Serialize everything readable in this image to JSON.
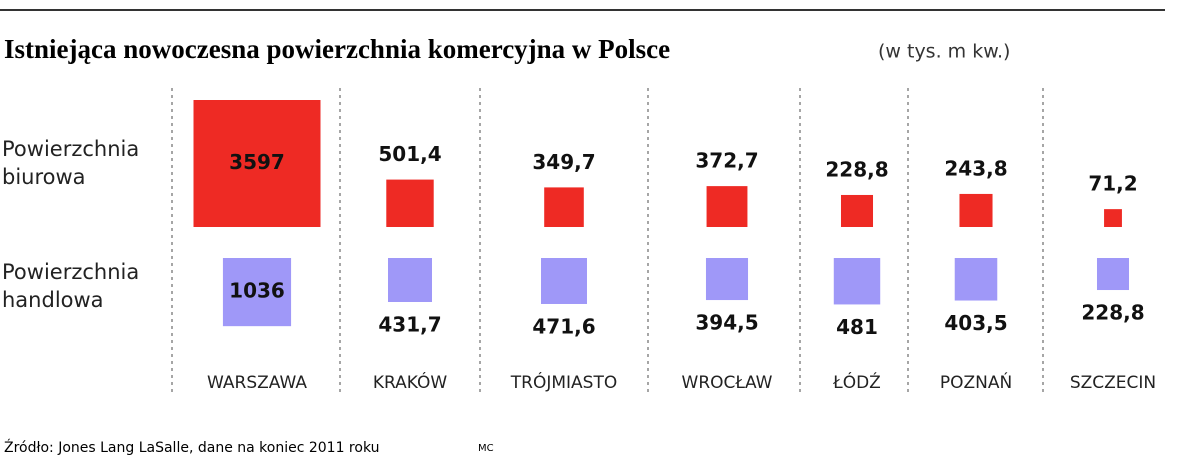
{
  "chart_data": {
    "type": "proportional-square",
    "title": "Istniejąca nowoczesna powierzchnia komercyjna w Polsce",
    "subtitle": "(w tys. m kw.)",
    "source": "Źródło: Jones Lang LaSalle, dane na koniec 2011 roku",
    "credit": "MC",
    "categories": [
      "WARSZAWA",
      "KRAKÓW",
      "TRÓJMIASTO",
      "WROCŁAW",
      "ŁÓDŹ",
      "POZNAŃ",
      "SZCZECIN"
    ],
    "series": [
      {
        "name": "Powierzchnia biurowa",
        "color": "#ee2a24",
        "values": [
          3597,
          501.4,
          349.7,
          372.7,
          228.8,
          243.8,
          71.2
        ],
        "value_labels": [
          "3597",
          "501,4",
          "349,7",
          "372,7",
          "228,8",
          "243,8",
          "71,2"
        ]
      },
      {
        "name": "Powierzchnia handlowa",
        "color": "#9f98f8",
        "values": [
          1036,
          431.7,
          471.6,
          394.5,
          481,
          403.5,
          228.8
        ],
        "value_labels": [
          "1036",
          "431,7",
          "471,6",
          "394,5",
          "481",
          "403,5",
          "228,8"
        ]
      }
    ]
  }
}
